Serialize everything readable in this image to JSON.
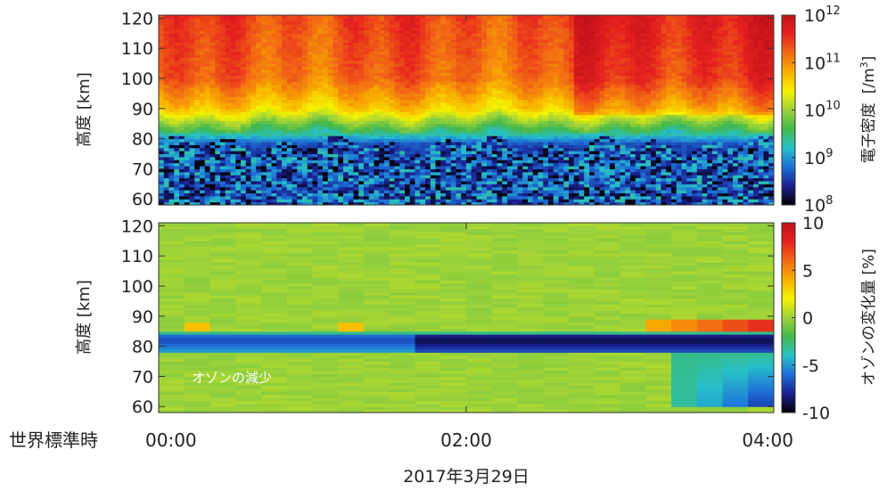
{
  "chart_data": [
    {
      "type": "heatmap",
      "ylabel": "高度 [km]",
      "ylim": [
        58,
        121
      ],
      "y_ticks": [
        "60",
        "70",
        "80",
        "90",
        "100",
        "110",
        "120"
      ],
      "colorbar": {
        "label": "電子密度 [/m³]",
        "label_main": "電子密度",
        "label_unit_open": "[/m",
        "label_unit_sup": "3",
        "label_unit_close": "]",
        "scale": "log",
        "range": [
          100000000,
          1000000000000
        ],
        "ticks": [
          {
            "base": "10",
            "exp": "12"
          },
          {
            "base": "10",
            "exp": "11"
          },
          {
            "base": "10",
            "exp": "10"
          },
          {
            "base": "10",
            "exp": "9"
          },
          {
            "base": "10",
            "exp": "8"
          }
        ],
        "colors": [
          "#000000",
          "#1a1f8f",
          "#1e6fd8",
          "#27c0c8",
          "#44b84a",
          "#9cd23a",
          "#f6f200",
          "#f8b000",
          "#f26a14",
          "#e5211f",
          "#c2121a"
        ]
      },
      "profile_log10_ne": [
        {
          "alt": 60,
          "val": 8.3
        },
        {
          "alt": 78,
          "val": 8.6
        },
        {
          "alt": 82,
          "val": 9.4
        },
        {
          "alt": 86,
          "val": 10.0
        },
        {
          "alt": 90,
          "val": 10.6
        },
        {
          "alt": 100,
          "val": 11.2
        },
        {
          "alt": 120,
          "val": 11.4
        }
      ]
    },
    {
      "type": "heatmap",
      "ylabel": "高度 [km]",
      "ylim": [
        58,
        121
      ],
      "y_ticks": [
        "60",
        "70",
        "80",
        "90",
        "100",
        "110",
        "120"
      ],
      "colorbar": {
        "label": "オゾンの変化量 [%]",
        "range": [
          -10,
          10
        ],
        "ticks": [
          "10",
          "5",
          "0",
          "-5",
          "-10"
        ],
        "colors": [
          "#000000",
          "#1a1f8f",
          "#1e6fd8",
          "#27c0c8",
          "#44b84a",
          "#9cd23a",
          "#f6f200",
          "#f8b000",
          "#f26a14",
          "#e5211f",
          "#c2121a"
        ]
      },
      "annotation": "オゾンの減少",
      "background_change_percent": 0,
      "depletion_layer": {
        "alt_range_km": [
          78,
          85
        ],
        "change_percent_min": -10
      },
      "enhancement_layer": {
        "alt_range_km": [
          85,
          89
        ],
        "change_percent_max": 8
      }
    }
  ],
  "x_axis": {
    "caption": "世界標準時",
    "ticks": [
      "00:00",
      "02:00",
      "04:00"
    ],
    "date": "2017年3月29日"
  }
}
